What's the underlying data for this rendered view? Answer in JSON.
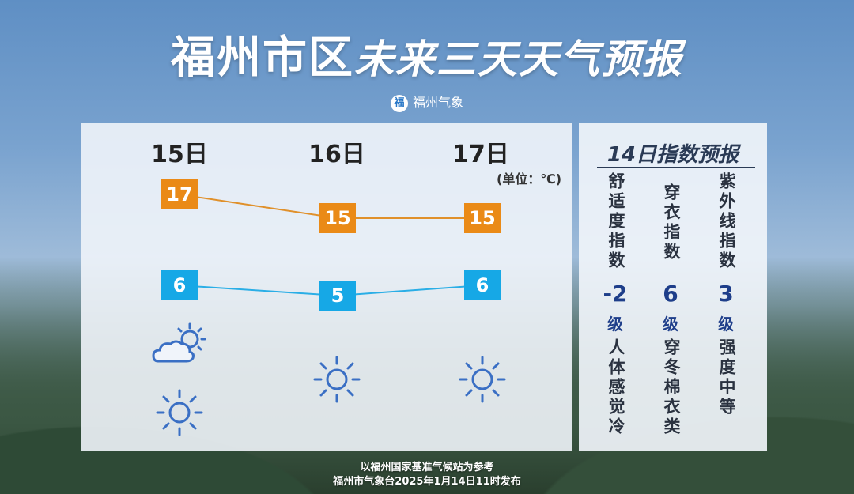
{
  "title": {
    "part1": "福州市区",
    "part2": "未来三天天气预报"
  },
  "brand": {
    "icon_char": "福",
    "name": "福州气象"
  },
  "forecast": {
    "unit": "(单位：℃)",
    "days": [
      {
        "date": "15日",
        "high": "17",
        "low": "6",
        "icons": [
          "partly-cloudy-icon",
          "sun-icon"
        ]
      },
      {
        "date": "16日",
        "high": "15",
        "low": "5",
        "icons": [
          "sun-icon"
        ]
      },
      {
        "date": "17日",
        "high": "15",
        "low": "6",
        "icons": [
          "sun-icon"
        ]
      }
    ],
    "colors": {
      "high": "#ea8a17",
      "low": "#16a8e6",
      "icon": "#3a6fc4"
    }
  },
  "index": {
    "title": "14日指数预报",
    "items": [
      {
        "label": "舒适度指数",
        "value": "-2",
        "level": "级",
        "desc": "人体感觉冷"
      },
      {
        "label": "穿衣指数",
        "value": "6",
        "level": "级",
        "desc": "穿冬棉衣类"
      },
      {
        "label": "紫外线指数",
        "value": "3",
        "level": "级",
        "desc": "强度中等"
      }
    ]
  },
  "footer": {
    "line1": "以福州国家基准气候站为参考",
    "line2": "福州市气象台2025年1月14日11时发布"
  }
}
